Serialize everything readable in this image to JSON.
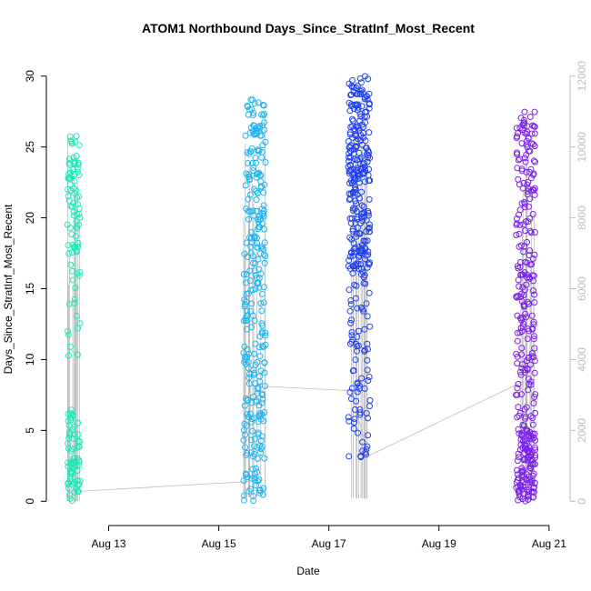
{
  "chart_data": {
    "type": "scatter",
    "title": "ATOM1 Northbound Days_Since_StratInf_Most_Recent",
    "xlabel": "Date",
    "ylabel": "Days_Since_StratInf_Most_Recent",
    "x_ticks": [
      "Aug 13",
      "Aug 15",
      "Aug 17",
      "Aug 19",
      "Aug 21"
    ],
    "x_tick_values": [
      13,
      15,
      17,
      19,
      21
    ],
    "xlim": [
      12.0,
      21.25
    ],
    "ylim": [
      -1.2,
      31.2
    ],
    "y_ticks": [
      0,
      5,
      10,
      15,
      20,
      25,
      30
    ],
    "y2lim": [
      -480,
      12480
    ],
    "y2_ticks": [
      0,
      2000,
      4000,
      6000,
      8000,
      10000,
      12000
    ],
    "grid": false,
    "marker": "open circle",
    "series": [
      {
        "color": "#1de9b6",
        "x_range": [
          12.25,
          12.48
        ],
        "y_bands": [
          [
            0,
            6.5,
            0.45
          ],
          [
            17,
            26,
            0.4
          ],
          [
            9,
            17,
            0.15
          ]
        ],
        "n_points": 160
      },
      {
        "color": "#1fb4f0",
        "x_range": [
          15.45,
          15.85
        ],
        "y_bands": [
          [
            0,
            2.5,
            0.1
          ],
          [
            3,
            28.5,
            0.9
          ]
        ],
        "n_points": 300
      },
      {
        "color": "#1f3ff0",
        "x_range": [
          17.35,
          17.75
        ],
        "y_bands": [
          [
            16,
            30,
            0.75
          ],
          [
            3,
            16,
            0.25
          ]
        ],
        "n_points": 330
      },
      {
        "color": "#7a1fef",
        "x_range": [
          20.4,
          20.75
        ],
        "y_bands": [
          [
            0,
            5,
            0.35
          ],
          [
            5,
            27.5,
            0.65
          ]
        ],
        "n_points": 330
      }
    ],
    "connector_line": {
      "color": "#bdbdbd",
      "x": [
        12.28,
        12.46,
        15.55,
        15.58,
        15.85,
        17.4,
        17.72,
        20.5,
        20.75
      ],
      "y": [
        0.7,
        0.7,
        1.4,
        8.1,
        8.1,
        7.8,
        3.2,
        8.4,
        8.6
      ]
    },
    "vertical_lines": {
      "color": "#bdbdbd",
      "groups": [
        {
          "x_range": [
            12.25,
            12.48
          ],
          "top": 27,
          "bottom": 0
        },
        {
          "x_range": [
            15.45,
            15.85
          ],
          "top": 29,
          "bottom": 0.3
        },
        {
          "x_range": [
            17.4,
            17.75
          ],
          "top": 29.5,
          "bottom": 0.2
        },
        {
          "x_range": [
            20.45,
            20.75
          ],
          "top": 28,
          "bottom": 0
        }
      ]
    }
  }
}
